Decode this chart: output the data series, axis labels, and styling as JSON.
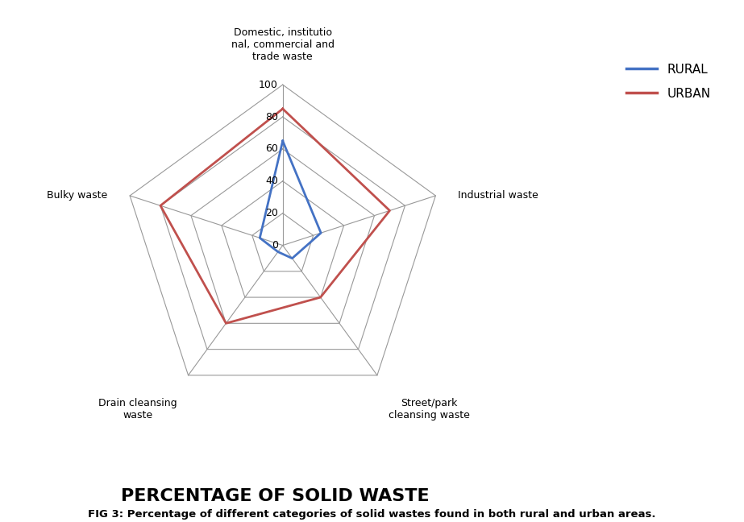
{
  "categories": [
    "Domestic, institutio\nnal, commercial and\ntrade waste",
    "Industrial waste",
    "Street/park\ncleansing waste",
    "Drain cleansing\nwaste",
    "Bulky waste"
  ],
  "rural": [
    65,
    25,
    10,
    5,
    15
  ],
  "urban": [
    85,
    70,
    40,
    60,
    80
  ],
  "rural_color": "#4472C4",
  "urban_color": "#C0504D",
  "grid_color": "#999999",
  "spoke_color": "#999999",
  "background_color": "#FFFFFF",
  "r_max": 100,
  "r_ticks": [
    0,
    20,
    40,
    60,
    80,
    100
  ],
  "title": "PERCENTAGE OF SOLID WASTE",
  "title_fontsize": 16,
  "legend_labels": [
    "RURAL",
    "URBAN"
  ],
  "caption": "FIG 3: Percentage of different categories of solid wastes found in both rural and urban areas.",
  "line_width": 2.0,
  "label_fontsize": 9,
  "tick_fontsize": 9
}
